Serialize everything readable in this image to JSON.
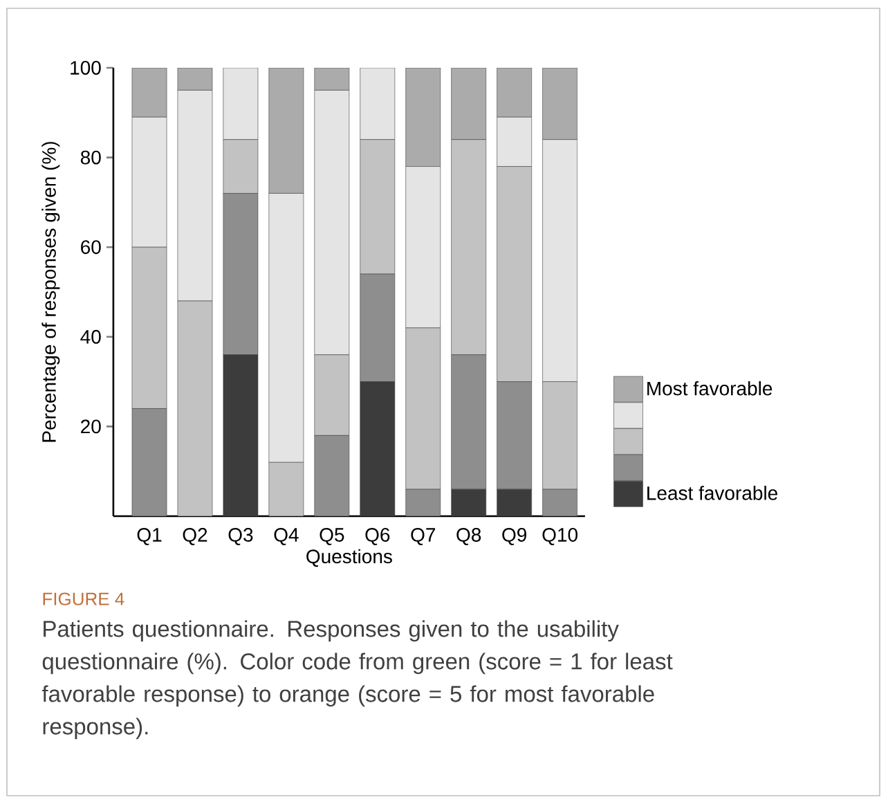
{
  "chart_data": {
    "type": "bar",
    "stacked": true,
    "ylabel": "Percentage of responses given (%)",
    "xlabel": "Questions",
    "categories": [
      "Q1",
      "Q2",
      "Q3",
      "Q4",
      "Q5",
      "Q6",
      "Q7",
      "Q8",
      "Q9",
      "Q10"
    ],
    "ylim": [
      0,
      100
    ],
    "yticks": [
      20,
      40,
      60,
      80,
      100
    ],
    "legend": "right",
    "series": [
      {
        "name": "Least favorable",
        "color": "#3c3c3c",
        "values": [
          0,
          0,
          36,
          0,
          0,
          30,
          0,
          6,
          6,
          0
        ]
      },
      {
        "color": "#8e8e8e",
        "values": [
          24,
          0,
          36,
          0,
          18,
          24,
          6,
          30,
          24,
          6
        ]
      },
      {
        "color": "#c2c2c2",
        "values": [
          36,
          48,
          12,
          12,
          18,
          30,
          36,
          48,
          48,
          24
        ]
      },
      {
        "color": "#e4e4e4",
        "values": [
          29,
          47,
          16,
          60,
          59,
          16,
          36,
          0,
          11,
          54
        ]
      },
      {
        "name": "Most favorable",
        "color": "#ababab",
        "values": [
          11,
          5,
          0,
          28,
          5,
          0,
          22,
          16,
          11,
          16
        ]
      }
    ],
    "annotations": [
      "FIGURE 4",
      "Patients questionnaire. Responses given to the usability questionnaire (%). Color code from green (score = 1 for least favorable response) to orange (score = 5 for most favorable response)."
    ]
  }
}
